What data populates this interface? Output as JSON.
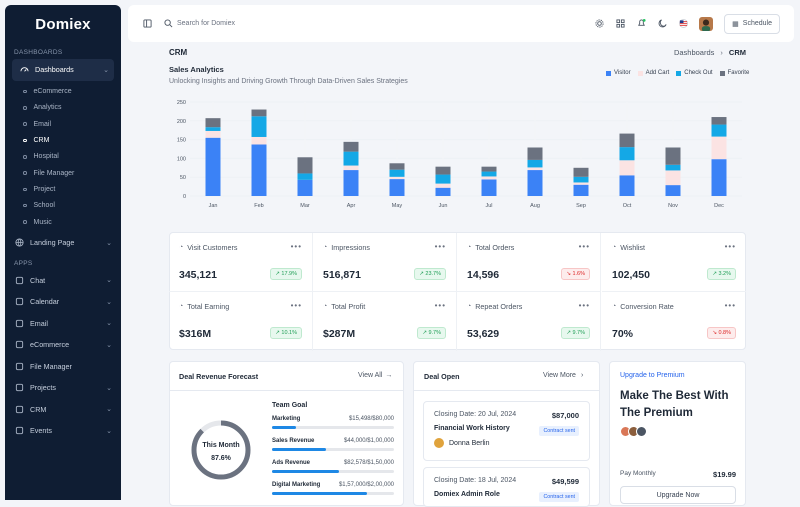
{
  "brand": {
    "logo_text": "Domiex"
  },
  "sidebar": {
    "section_dashboards": "DASHBOARDS",
    "dashboards_label": "Dashboards",
    "sub_items": [
      "eCommerce",
      "Analytics",
      "Email",
      "CRM",
      "Hospital",
      "File Manager",
      "Project",
      "School",
      "Music"
    ],
    "landing_page": "Landing Page",
    "section_apps": "APPS",
    "apps": [
      "Chat",
      "Calendar",
      "Email",
      "eCommerce",
      "File Manager",
      "Projects",
      "CRM",
      "Events"
    ]
  },
  "topbar": {
    "search_placeholder": "Search for Domiex",
    "schedule_label": "Schedule"
  },
  "page": {
    "title": "CRM",
    "breadcrumb_parent": "Dashboards",
    "breadcrumb_current": "CRM"
  },
  "analytics": {
    "title": "Sales Analytics",
    "subtitle": "Unlocking Insights and Driving Growth Through Data-Driven Sales Strategies"
  },
  "chart_data": {
    "type": "bar",
    "stacked": true,
    "categories": [
      "Jan",
      "Feb",
      "Mar",
      "Apr",
      "May",
      "Jun",
      "Jul",
      "Aug",
      "Sep",
      "Oct",
      "Nov",
      "Dec"
    ],
    "ylim": [
      0,
      250
    ],
    "yticks": [
      0,
      50,
      100,
      150,
      200,
      250
    ],
    "series": [
      {
        "name": "Visitor",
        "color": "#3b82f6",
        "values": [
          155,
          137,
          43,
          69,
          45,
          22,
          44,
          69,
          30,
          55,
          29,
          98
        ]
      },
      {
        "name": "Add Cart",
        "color": "#fbe3e3",
        "values": [
          18,
          20,
          0,
          12,
          6,
          11,
          8,
          7,
          6,
          40,
          39,
          60
        ]
      },
      {
        "name": "Check Out",
        "color": "#14a8e6",
        "values": [
          10,
          55,
          17,
          37,
          19,
          24,
          13,
          20,
          15,
          35,
          15,
          32
        ]
      },
      {
        "name": "Favorite",
        "color": "#6b7280",
        "values": [
          24,
          18,
          43,
          26,
          17,
          21,
          13,
          33,
          24,
          36,
          46,
          20
        ]
      }
    ]
  },
  "stats": [
    {
      "label": "Visit Customers",
      "value": "345,121",
      "change": "17.9%",
      "dir": "up"
    },
    {
      "label": "Impressions",
      "value": "516,871",
      "change": "23.7%",
      "dir": "up"
    },
    {
      "label": "Total Orders",
      "value": "14,596",
      "change": "1.6%",
      "dir": "down"
    },
    {
      "label": "Wishlist",
      "value": "102,450",
      "change": "3.2%",
      "dir": "up"
    },
    {
      "label": "Total Earning",
      "value": "$316M",
      "change": "10.1%",
      "dir": "up"
    },
    {
      "label": "Total Profit",
      "value": "$287M",
      "change": "9.7%",
      "dir": "up"
    },
    {
      "label": "Repeat Orders",
      "value": "53,629",
      "change": "9.7%",
      "dir": "up"
    },
    {
      "label": "Conversion Rate",
      "value": "70%",
      "change": "0.8%",
      "dir": "down"
    }
  ],
  "forecast": {
    "title": "Deal Revenue Forecast",
    "view_all": "View All",
    "ring_label": "This Month",
    "ring_value": "87.6%",
    "ring_fraction": 0.876,
    "goal_title": "Team Goal",
    "goals": [
      {
        "name": "Marketing",
        "value": "$15,498/$80,000",
        "fraction": 0.2
      },
      {
        "name": "Sales Revenue",
        "value": "$44,000/$1,00,000",
        "fraction": 0.44
      },
      {
        "name": "Ads Revenue",
        "value": "$82,578/$1,50,000",
        "fraction": 0.55
      },
      {
        "name": "Digital Marketing",
        "value": "$1,57,000/$2,00,000",
        "fraction": 0.78
      }
    ]
  },
  "deal_open": {
    "title": "Deal Open",
    "view_more": "View More",
    "deals": [
      {
        "date": "Closing Date: 20 Jul, 2024",
        "amount": "$87,000",
        "title": "Financial Work History",
        "status": "Contract sent",
        "owner": "Donna Berlin"
      },
      {
        "date": "Closing Date: 18 Jul, 2024",
        "amount": "$49,599",
        "title": "Domiex Admin Role",
        "status": "Contract sent"
      }
    ]
  },
  "premium": {
    "link": "Upgrade to Premium",
    "headline": "Make The Best With The Premium",
    "pay_label": "Pay Monthly",
    "price": "$19.99",
    "button": "Upgrade Now"
  }
}
